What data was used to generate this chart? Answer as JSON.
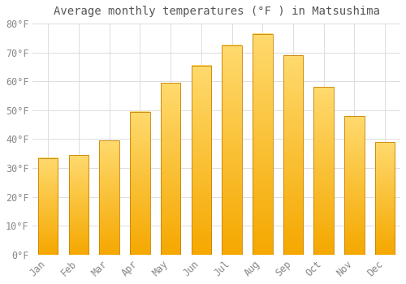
{
  "title": "Average monthly temperatures (°F ) in Matsushima",
  "months": [
    "Jan",
    "Feb",
    "Mar",
    "Apr",
    "May",
    "Jun",
    "Jul",
    "Aug",
    "Sep",
    "Oct",
    "Nov",
    "Dec"
  ],
  "values": [
    33.5,
    34.5,
    39.5,
    49.5,
    59.5,
    65.5,
    72.5,
    76.5,
    69.0,
    58.0,
    48.0,
    39.0
  ],
  "bar_color_bottom": "#F5A800",
  "bar_color_top": "#FFDA6E",
  "bar_edge_color": "#C88000",
  "background_color": "#FFFFFF",
  "grid_color": "#DDDDDD",
  "text_color": "#888888",
  "title_color": "#555555",
  "ylim": [
    0,
    80
  ],
  "yticks": [
    0,
    10,
    20,
    30,
    40,
    50,
    60,
    70,
    80
  ],
  "title_fontsize": 10,
  "tick_fontsize": 8.5
}
